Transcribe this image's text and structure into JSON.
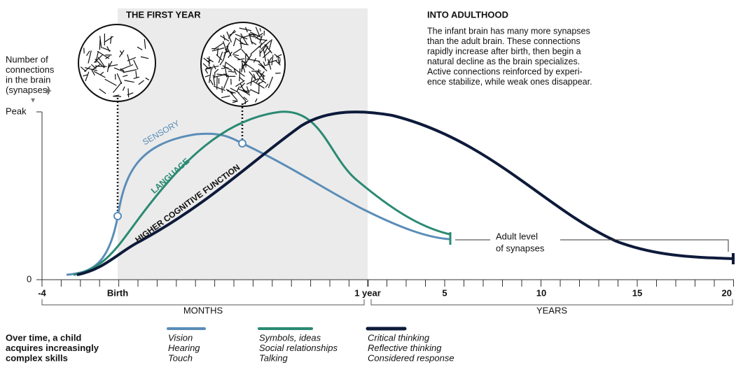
{
  "header": {
    "first_year": "THE FIRST YEAR",
    "adulthood_title": "INTO ADULTHOOD",
    "adulthood_text": [
      "The infant brain has many more synapses",
      "than the adult brain. These connections",
      "rapidly increase after birth, then begin a",
      "natural decline as the brain specializes.",
      "Active connections reinforced by experi-",
      "ence stabilize, while weak ones disappear."
    ]
  },
  "y_axis": {
    "label": [
      "Number of",
      "connections",
      "in the brain",
      "(synapses)"
    ],
    "ticks": [
      "Peak",
      "0"
    ]
  },
  "curves": {
    "sensory": "SENSORY",
    "language": "LANGUAGE",
    "higher": "HIGHER COGNITIVE FUNCTION"
  },
  "annotation": [
    "Adult level",
    "of synapses"
  ],
  "x_axis": {
    "ticks": [
      "-4",
      "Birth",
      "1 year",
      "5",
      "10",
      "15",
      "20"
    ],
    "months": "MONTHS",
    "years": "YEARS"
  },
  "legend": {
    "intro": [
      "Over time, a child",
      "acquires increasingly",
      "complex skills"
    ],
    "groups": [
      [
        "Vision",
        "Hearing",
        "Touch"
      ],
      [
        "Symbols, ideas",
        "Social relationships",
        "Talking"
      ],
      [
        "Critical thinking",
        "Reflective thinking",
        "Considered response"
      ]
    ]
  }
}
